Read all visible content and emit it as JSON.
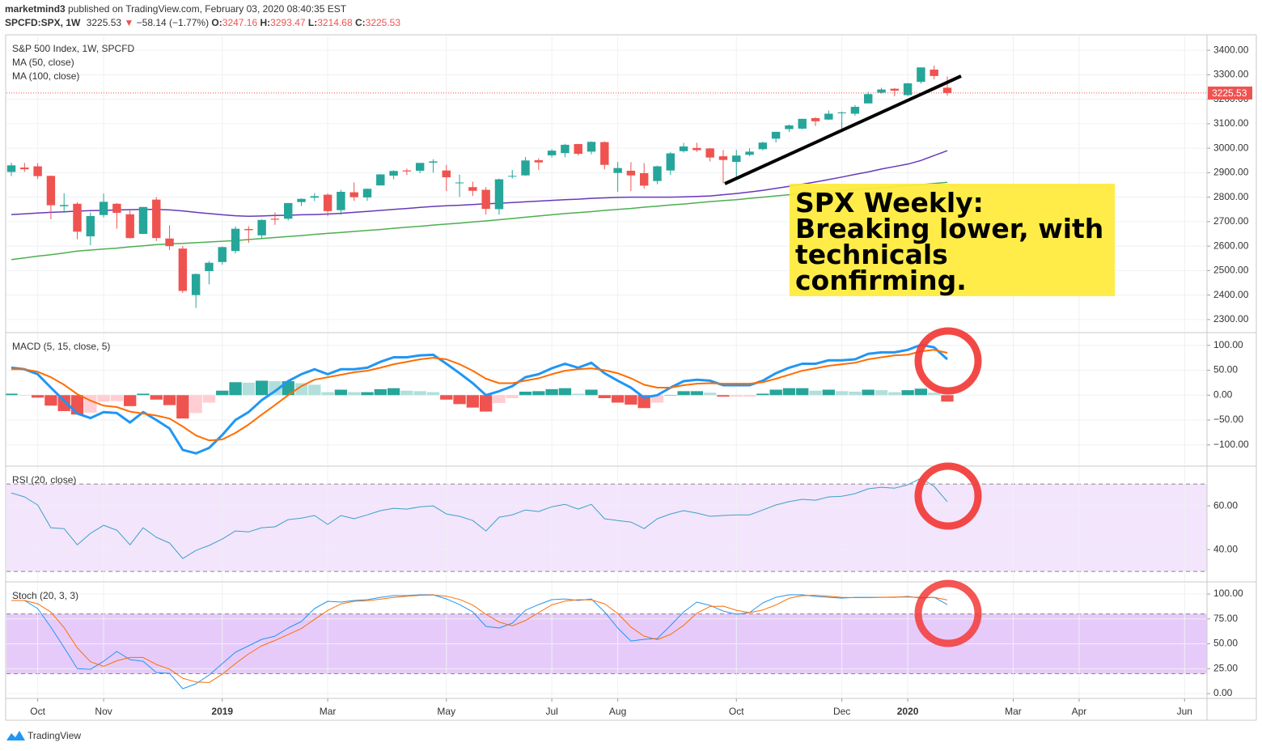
{
  "header": {
    "author": "marketmind3",
    "published": "published on TradingView.com, February 03, 2020 08:40:35 EST",
    "symbol": "SPCFD:SPX, 1W",
    "arrow": "▼",
    "change": "−58.14 (−1.77%)",
    "ohlc_labels": [
      "O:",
      "H:",
      "L:",
      "C:"
    ]
  },
  "footer": {
    "brand": "TradingView"
  },
  "chart_data": [
    {
      "type": "candlestick",
      "title": "S&P 500 Index, 1W, SPCFD",
      "up_color": "#26a69a",
      "down_color": "#ef5350",
      "grid": true,
      "xlim": [
        -0.37,
        90.7
      ],
      "ylim": [
        2250,
        3460
      ],
      "yticks": [
        {
          "value": 2300,
          "label": "2300.00"
        },
        {
          "value": 2400,
          "label": "2400.00"
        },
        {
          "value": 2500,
          "label": "2500.00"
        },
        {
          "value": 2600,
          "label": "2600.00"
        },
        {
          "value": 2700,
          "label": "2700.00"
        },
        {
          "value": 2800,
          "label": "2800.00"
        },
        {
          "value": 2900,
          "label": "2900.00"
        },
        {
          "value": 3000,
          "label": "3000.00"
        },
        {
          "value": 3100,
          "label": "3100.00"
        },
        {
          "value": 3200,
          "label": "3200.00"
        },
        {
          "value": 3300,
          "label": "3300.00"
        },
        {
          "value": 3400,
          "label": "3400.00"
        }
      ],
      "open": [
        2903,
        2921,
        2926,
        2887,
        2763,
        2773,
        2640,
        2727,
        2773,
        2730,
        2650,
        2790,
        2631,
        2590,
        2400,
        2498,
        2535,
        2580,
        2670,
        2644,
        2712,
        2712,
        2780,
        2798,
        2810,
        2747,
        2820,
        2799,
        2848,
        2888,
        2909,
        2908,
        2941,
        2909,
        2859,
        2841,
        2830,
        2751,
        2885,
        2889,
        2951,
        2971,
        2980,
        3017,
        2986,
        3025,
        2899,
        2908,
        2898,
        2866,
        2909,
        2988,
        3001,
        2999,
        2967,
        2944,
        2973,
        2996,
        3039,
        3078,
        3080,
        3123,
        3117,
        3144,
        3141,
        3183,
        3227,
        3243,
        3217,
        3271,
        3321,
        3247.16
      ],
      "high": [
        2941,
        2940,
        2939,
        2888,
        2816,
        2779,
        2738,
        2815,
        2776,
        2746,
        2760,
        2800,
        2685,
        2601,
        2489,
        2539,
        2598,
        2681,
        2681,
        2709,
        2738,
        2776,
        2795,
        2817,
        2816,
        2830,
        2860,
        2836,
        2894,
        2910,
        2917,
        2937,
        2955,
        2932,
        2892,
        2863,
        2841,
        2876,
        2911,
        2964,
        2959,
        2996,
        3018,
        3018,
        3028,
        3028,
        2944,
        2943,
        2939,
        2929,
        2985,
        3022,
        3022,
        3001,
        2993,
        2993,
        3000,
        3027,
        3067,
        3097,
        3120,
        3127,
        3154,
        3150,
        3176,
        3231,
        3247,
        3246,
        3267,
        3330,
        3337,
        3293.47
      ],
      "low": [
        2886,
        2903,
        2874,
        2710,
        2736,
        2628,
        2604,
        2717,
        2671,
        2631,
        2649,
        2621,
        2584,
        2409,
        2347,
        2444,
        2524,
        2570,
        2613,
        2631,
        2687,
        2705,
        2764,
        2784,
        2722,
        2728,
        2785,
        2785,
        2848,
        2873,
        2891,
        2898,
        2900,
        2825,
        2801,
        2805,
        2729,
        2728,
        2876,
        2887,
        2912,
        2962,
        2963,
        2970,
        2975,
        2914,
        2822,
        2825,
        2835,
        2853,
        2891,
        2982,
        2985,
        2946,
        2856,
        2874,
        2967,
        2991,
        3023,
        3066,
        3077,
        3091,
        3115,
        3070,
        3133,
        3183,
        3223,
        3212,
        3213,
        3264,
        3281,
        3214.68
      ],
      "close": [
        2930,
        2914,
        2886,
        2767,
        2768,
        2659,
        2723,
        2781,
        2736,
        2633,
        2760,
        2633,
        2600,
        2417,
        2486,
        2532,
        2596,
        2671,
        2665,
        2707,
        2708,
        2776,
        2793,
        2804,
        2743,
        2822,
        2800,
        2834,
        2893,
        2907,
        2905,
        2940,
        2946,
        2881,
        2860,
        2826,
        2752,
        2873,
        2887,
        2950,
        2942,
        2990,
        3014,
        2977,
        3026,
        2932,
        2919,
        2889,
        2847,
        2926,
        2979,
        3007,
        2992,
        2962,
        2952,
        2970,
        2986,
        3023,
        3067,
        3093,
        3120,
        3110,
        3141,
        3146,
        3169,
        3221,
        3240,
        3235,
        3265,
        3330,
        3295,
        3225.53
      ],
      "series": [
        {
          "name": "MA (50, close)",
          "color": "#673ab7",
          "values": [
            2729,
            2732,
            2735,
            2738,
            2740,
            2743,
            2745,
            2746,
            2748,
            2749,
            2750,
            2750,
            2748,
            2744,
            2738,
            2733,
            2728,
            2724,
            2722,
            2723,
            2725,
            2726,
            2728,
            2729,
            2731,
            2734,
            2738,
            2742,
            2746,
            2750,
            2754,
            2758,
            2762,
            2765,
            2767,
            2770,
            2773,
            2775,
            2778,
            2781,
            2784,
            2787,
            2790,
            2792,
            2795,
            2797,
            2799,
            2800,
            2800,
            2800,
            2800,
            2801,
            2803,
            2805,
            2810,
            2815,
            2821,
            2828,
            2836,
            2844,
            2853,
            2862,
            2872,
            2882,
            2893,
            2903,
            2915,
            2925,
            2935,
            2950,
            2970,
            2990
          ]
        },
        {
          "name": "MA (100, close)",
          "color": "#4caf50",
          "values": [
            2545,
            2552,
            2559,
            2565,
            2572,
            2580,
            2584,
            2588,
            2592,
            2597,
            2601,
            2606,
            2609,
            2611,
            2614,
            2617,
            2620,
            2623,
            2627,
            2631,
            2635,
            2639,
            2643,
            2648,
            2652,
            2656,
            2660,
            2664,
            2668,
            2673,
            2677,
            2681,
            2686,
            2690,
            2694,
            2699,
            2703,
            2708,
            2713,
            2718,
            2723,
            2728,
            2733,
            2737,
            2741,
            2746,
            2750,
            2754,
            2759,
            2763,
            2768,
            2772,
            2777,
            2782,
            2786,
            2790,
            2795,
            2800,
            2805,
            2810,
            2815,
            2819,
            2823,
            2827,
            2831,
            2835,
            2838,
            2843,
            2847,
            2851,
            2856,
            2861
          ]
        }
      ],
      "annotation": [
        "SPX Weekly:",
        "Breaking lower, with",
        "technicals",
        "confirming."
      ]
    },
    {
      "type": "line",
      "title": "MACD (5, 15, close, 5)",
      "grid": true,
      "xlim": [
        -0.37,
        90.7
      ],
      "ylim": [
        -141,
        124
      ],
      "yticks": [
        {
          "value": -100,
          "label": "−100.00"
        },
        {
          "value": -50,
          "label": "−50.00"
        },
        {
          "value": 0,
          "label": "0.00"
        },
        {
          "value": 50,
          "label": "50.00"
        },
        {
          "value": 100,
          "label": "100.00"
        }
      ],
      "series": [
        {
          "type": "histogram",
          "colors": [
            "#26a69a",
            "#b2dfdb",
            "#ef5350",
            "#ffcdd2"
          ],
          "values": [
            3,
            0,
            -5,
            -21,
            -32,
            -39,
            -35,
            -13,
            -12,
            -22,
            3,
            -9,
            -20,
            -47,
            -36,
            -15,
            9,
            26,
            25,
            29,
            28,
            28,
            24,
            21,
            6,
            11,
            6,
            6,
            12,
            14,
            9,
            8,
            6,
            -9,
            -18,
            -25,
            -33,
            -16,
            -6,
            7,
            8,
            12,
            14,
            3,
            11,
            -6,
            -15,
            -19,
            -26,
            -15,
            0,
            8,
            8,
            5,
            -3,
            -3,
            -3,
            3,
            11,
            14,
            14,
            9,
            11,
            8,
            7,
            11,
            10,
            6,
            10,
            13,
            5,
            -13
          ]
        },
        {
          "color": "#2196f3",
          "width": 3,
          "values": [
            55,
            52,
            42,
            15,
            -11,
            -37,
            -46,
            -34,
            -36,
            -55,
            -34,
            -50,
            -67,
            -110,
            -117,
            -106,
            -80,
            -50,
            -34,
            -10,
            8,
            28,
            42,
            52,
            42,
            52,
            52,
            55,
            67,
            76,
            76,
            80,
            81,
            63,
            44,
            24,
            0,
            8,
            18,
            36,
            42,
            54,
            63,
            55,
            65,
            44,
            29,
            15,
            -5,
            0,
            15,
            28,
            31,
            29,
            20,
            20,
            20,
            29,
            44,
            55,
            63,
            63,
            70,
            70,
            72,
            83,
            86,
            86,
            91,
            101,
            96,
            72
          ]
        },
        {
          "color": "#ff6d00",
          "width": 2,
          "values": [
            52,
            52,
            47,
            36,
            21,
            2,
            -11,
            -21,
            -24,
            -33,
            -37,
            -41,
            -47,
            -63,
            -81,
            -91,
            -89,
            -76,
            -59,
            -39,
            -20,
            0,
            18,
            31,
            36,
            41,
            46,
            49,
            55,
            62,
            67,
            72,
            75,
            72,
            62,
            49,
            33,
            24,
            24,
            29,
            34,
            42,
            49,
            52,
            54,
            50,
            44,
            34,
            21,
            15,
            15,
            20,
            23,
            24,
            23,
            23,
            23,
            26,
            33,
            41,
            49,
            54,
            59,
            62,
            65,
            72,
            76,
            80,
            81,
            88,
            91,
            85
          ]
        }
      ]
    },
    {
      "type": "line",
      "title": "RSI (20, close)",
      "grid": true,
      "xlim": [
        -0.37,
        90.7
      ],
      "ylim": [
        25.6,
        77.8
      ],
      "yticks": [
        {
          "value": 40,
          "label": "40.00"
        },
        {
          "value": 60,
          "label": "60.00"
        }
      ],
      "bands": [
        30,
        70
      ],
      "band_color": "#f3e5fc",
      "series": [
        {
          "color": "#3ba2c6",
          "width": 1,
          "values": [
            65.9,
            64.1,
            60.4,
            50,
            49.6,
            42.2,
            47.4,
            51.1,
            48.9,
            42.2,
            50,
            45.6,
            43,
            35.9,
            39.6,
            41.9,
            44.8,
            48.5,
            48.1,
            50,
            50.4,
            53.7,
            54.4,
            55.6,
            51.5,
            55.6,
            54.1,
            55.9,
            57.8,
            58.9,
            58.5,
            59.6,
            60,
            56.3,
            55.2,
            53.3,
            48.5,
            54.8,
            55.9,
            58.1,
            57.4,
            59.6,
            60.7,
            58.5,
            60.7,
            54.1,
            53.3,
            52.6,
            49.6,
            54.1,
            56.3,
            57.8,
            56.7,
            55.2,
            55.6,
            55.9,
            55.9,
            58.1,
            60.4,
            61.9,
            63,
            62.6,
            64.1,
            64.4,
            65.6,
            67.8,
            68.5,
            68.1,
            69.6,
            72.6,
            68.9,
            61.9
          ]
        }
      ]
    },
    {
      "type": "line",
      "title": "Stoch (20, 3, 3)",
      "grid": true,
      "xlim": [
        -0.37,
        90.7
      ],
      "ylim": [
        -4,
        111.4
      ],
      "yticks": [
        {
          "value": 0,
          "label": "0.00"
        },
        {
          "value": 25,
          "label": "25.00"
        },
        {
          "value": 50,
          "label": "50.00"
        },
        {
          "value": 75,
          "label": "75.00"
        },
        {
          "value": 100,
          "label": "100.00"
        }
      ],
      "bands": [
        20,
        80
      ],
      "band_color": "#e6cbfa",
      "xticks": [
        {
          "value": 2,
          "label": "Oct"
        },
        {
          "value": 7,
          "label": "Nov"
        },
        {
          "value": 16,
          "label": "2019"
        },
        {
          "value": 24,
          "label": "Mar"
        },
        {
          "value": 33,
          "label": "May"
        },
        {
          "value": 41,
          "label": "Jul"
        },
        {
          "value": 46,
          "label": "Aug"
        },
        {
          "value": 55,
          "label": "Oct"
        },
        {
          "value": 63,
          "label": "Dec"
        },
        {
          "value": 68,
          "label": "2020"
        },
        {
          "value": 76,
          "label": "Mar"
        },
        {
          "value": 81,
          "label": "Apr"
        },
        {
          "value": 89,
          "label": "Jun"
        }
      ],
      "series": [
        {
          "color": "#2196f3",
          "width": 1,
          "values": [
            93.5,
            93.5,
            85.4,
            66.7,
            46.3,
            25.2,
            24.4,
            32.5,
            42.3,
            34.1,
            32.5,
            21.1,
            20.3,
            4.9,
            9.8,
            18.7,
            30.1,
            41.5,
            48,
            54.5,
            57.7,
            65.9,
            72.4,
            85.4,
            92.7,
            91.9,
            93.5,
            94.3,
            96.7,
            98.4,
            98.4,
            99.2,
            99.2,
            95.1,
            89.4,
            82.1,
            67.5,
            65.9,
            70.7,
            83.7,
            89.4,
            94.3,
            95.1,
            93.5,
            95.1,
            82.1,
            65.9,
            52.8,
            54.5,
            55.3,
            68.3,
            82.1,
            91.9,
            88.6,
            82.9,
            79.7,
            81.3,
            91.1,
            96.7,
            99.2,
            99.2,
            97.6,
            96.7,
            95.9,
            96.7,
            96.7,
            96.7,
            96.7,
            97.6,
            95.9,
            96.7,
            89.4
          ]
        },
        {
          "color": "#ff6d00",
          "width": 1,
          "values": [
            93.5,
            93.5,
            90.2,
            81.9,
            66.2,
            46,
            32,
            27.4,
            33,
            36.3,
            36.3,
            29.2,
            24.6,
            15.4,
            11.7,
            11.1,
            19.5,
            30.1,
            39.9,
            48,
            53.4,
            59.3,
            65.3,
            74.6,
            83.5,
            90,
            92.7,
            93.3,
            94.8,
            96.5,
            97.8,
            98.7,
            99,
            97.8,
            94.6,
            88.9,
            79.7,
            71.8,
            68,
            73.4,
            81.3,
            89.1,
            92.9,
            94.3,
            94.2,
            90.2,
            80.5,
            66.9,
            57.7,
            54.2,
            59.4,
            68.6,
            80.8,
            87.5,
            87.8,
            83.7,
            81.3,
            84,
            89,
            95.7,
            98.4,
            98.7,
            97.8,
            96.7,
            96.4,
            96.4,
            96.7,
            97,
            97,
            96.7,
            96.7,
            94
          ]
        }
      ]
    }
  ]
}
